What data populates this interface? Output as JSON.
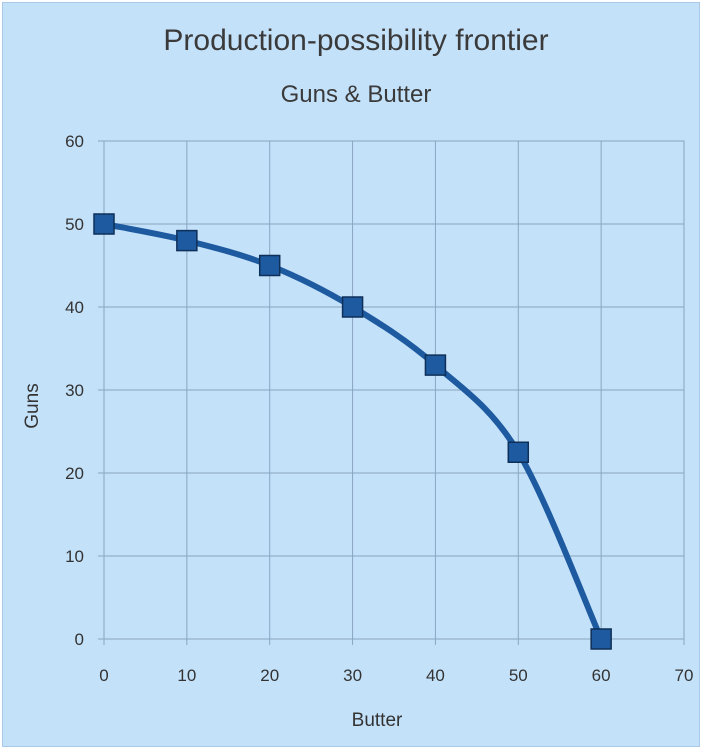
{
  "chart_data": {
    "type": "line",
    "title": "Production-possibility frontier",
    "subtitle": "Guns & Butter",
    "xlabel": "Butter",
    "ylabel": "Guns",
    "xlim": [
      0,
      70
    ],
    "ylim": [
      0,
      60
    ],
    "x_ticks": [
      0,
      10,
      20,
      30,
      40,
      50,
      60,
      70
    ],
    "y_ticks": [
      0,
      10,
      20,
      30,
      40,
      50,
      60
    ],
    "grid": true,
    "legend": false,
    "series": [
      {
        "x": [
          0,
          10,
          20,
          30,
          40,
          50,
          60
        ],
        "values": [
          50,
          48,
          45,
          40,
          33,
          22.5,
          0
        ],
        "color": "#1e5aa0",
        "marker": "square",
        "smooth": true
      }
    ]
  }
}
